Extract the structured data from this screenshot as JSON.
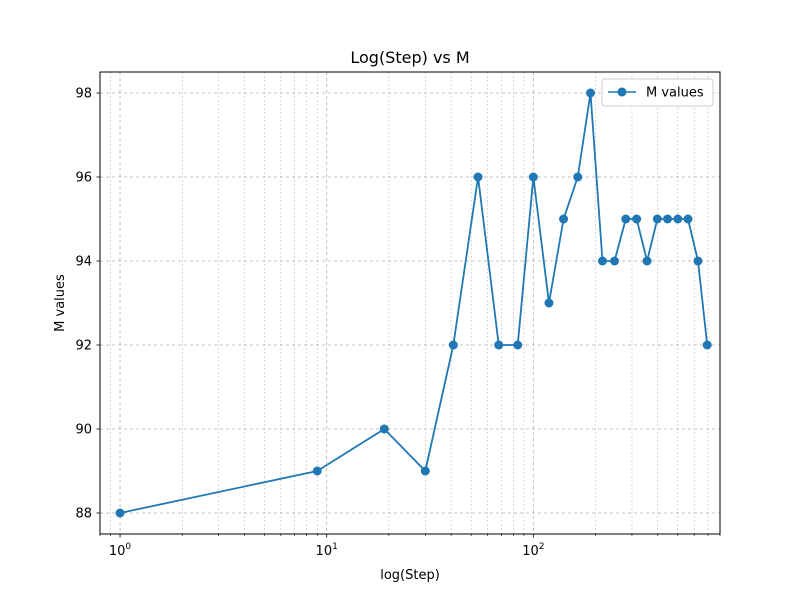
{
  "chart_data": {
    "type": "line",
    "title": "Log(Step) vs M",
    "xlabel": "log(Step)",
    "ylabel": "M values",
    "xscale": "log",
    "xlim": [
      0.8,
      800
    ],
    "ylim": [
      87.5,
      98.5
    ],
    "x_major_ticks": [
      1,
      10,
      100
    ],
    "x_tick_labels": [
      {
        "base": "10",
        "exp": "0"
      },
      {
        "base": "10",
        "exp": "1"
      },
      {
        "base": "10",
        "exp": "2"
      }
    ],
    "y_ticks": [
      88,
      90,
      92,
      94,
      96,
      98
    ],
    "y_tick_labels": [
      "88",
      "90",
      "92",
      "94",
      "96",
      "98"
    ],
    "grid": true,
    "legend_position": "top-right",
    "series": [
      {
        "name": "M values",
        "color": "#1f77b4",
        "marker": "circle",
        "x": [
          1,
          9,
          19,
          30,
          41,
          54,
          68,
          84,
          100,
          119,
          140,
          164,
          189,
          216,
          247,
          280,
          316,
          355,
          398,
          446,
          500,
          560,
          626,
          694
        ],
        "y": [
          88,
          89,
          90,
          89,
          92,
          96,
          92,
          92,
          96,
          93,
          95,
          96,
          98,
          94,
          94,
          95,
          95,
          94,
          95,
          95,
          95,
          95,
          94,
          92
        ]
      }
    ]
  }
}
